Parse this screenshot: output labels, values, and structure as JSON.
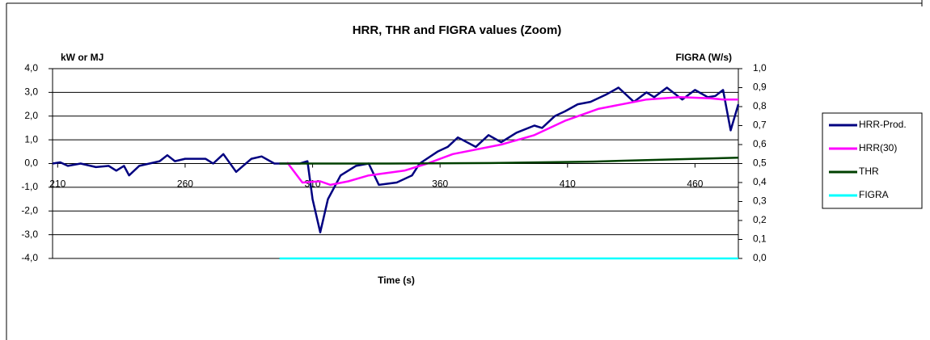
{
  "chart_data": {
    "type": "line",
    "title": "HRR, THR and FIGRA values (Zoom)",
    "y_label": "kW or MJ",
    "y2_label": "FIGRA (W/s)",
    "x_label": "Time (s)",
    "xlim": [
      208,
      477
    ],
    "xticks": [
      210,
      260,
      310,
      360,
      410,
      460
    ],
    "ylim": [
      -4,
      4
    ],
    "yticks": [
      {
        "value": -4,
        "label": "-4,0"
      },
      {
        "value": -3,
        "label": "-3,0"
      },
      {
        "value": -2,
        "label": "-2,0"
      },
      {
        "value": -1,
        "label": "-1,0"
      },
      {
        "value": 0,
        "label": "0,0"
      },
      {
        "value": 1,
        "label": "1,0"
      },
      {
        "value": 2,
        "label": "2,0"
      },
      {
        "value": 3,
        "label": "3,0"
      },
      {
        "value": 4,
        "label": "4,0"
      }
    ],
    "y2lim": [
      0,
      1
    ],
    "y2ticks": [
      {
        "value": 0,
        "label": "0,0"
      },
      {
        "value": 0.1,
        "label": "0,1"
      },
      {
        "value": 0.2,
        "label": "0,2"
      },
      {
        "value": 0.3,
        "label": "0,3"
      },
      {
        "value": 0.4,
        "label": "0,4"
      },
      {
        "value": 0.5,
        "label": "0,5"
      },
      {
        "value": 0.6,
        "label": "0,6"
      },
      {
        "value": 0.7,
        "label": "0,7"
      },
      {
        "value": 0.8,
        "label": "0,8"
      },
      {
        "value": 0.9,
        "label": "0,9"
      },
      {
        "value": 1,
        "label": "1,0"
      }
    ],
    "grid": true,
    "legend": "right",
    "series": [
      {
        "name": "HRR-Prod.",
        "color": "#000080",
        "x": [
          208,
          211,
          214,
          219,
          225,
          230,
          233,
          236,
          238,
          242,
          246,
          250,
          253,
          256,
          260,
          268,
          271,
          275,
          280,
          286,
          290,
          295,
          300,
          305,
          308,
          310,
          313,
          316,
          321,
          327,
          332,
          336,
          343,
          349,
          352,
          359,
          363,
          367,
          374,
          379,
          384,
          390,
          397,
          400,
          405,
          409,
          414,
          419,
          425,
          430,
          436,
          441,
          444,
          449,
          455,
          460,
          465,
          468,
          471,
          474,
          477
        ],
        "values": [
          0,
          0.05,
          -0.1,
          0,
          -0.15,
          -0.1,
          -0.3,
          -0.1,
          -0.5,
          -0.1,
          0,
          0.1,
          0.35,
          0.1,
          0.2,
          0.2,
          0,
          0.4,
          -0.35,
          0.2,
          0.3,
          0,
          0,
          0,
          0.1,
          -1.5,
          -2.9,
          -1.5,
          -0.5,
          -0.1,
          0,
          -0.9,
          -0.8,
          -0.5,
          0,
          0.5,
          0.7,
          1.1,
          0.7,
          1.2,
          0.9,
          1.3,
          1.6,
          1.5,
          2,
          2.2,
          2.5,
          2.6,
          2.9,
          3.2,
          2.6,
          3,
          2.8,
          3.2,
          2.7,
          3.1,
          2.8,
          2.85,
          3.1,
          1.4,
          2.5
        ]
      },
      {
        "name": "HRR(30)",
        "color": "#ff00ff",
        "x": [
          300,
          306,
          313,
          317,
          324,
          332,
          346,
          355,
          365,
          384,
          397,
          409,
          422,
          441,
          454,
          466,
          471,
          477
        ],
        "values": [
          0.05,
          -0.8,
          -0.75,
          -0.9,
          -0.75,
          -0.5,
          -0.3,
          0,
          0.4,
          0.8,
          1.2,
          1.8,
          2.3,
          2.7,
          2.8,
          2.75,
          2.7,
          2.7
        ]
      },
      {
        "name": "THR",
        "color": "#004000",
        "x": [
          297,
          340,
          380,
          420,
          450,
          477
        ],
        "values": [
          0,
          0,
          0.02,
          0.08,
          0.17,
          0.25
        ]
      },
      {
        "name": "FIGRA",
        "color": "#00ffff",
        "axis": "y2",
        "x": [
          297,
          477
        ],
        "values": [
          0,
          0
        ]
      }
    ]
  }
}
